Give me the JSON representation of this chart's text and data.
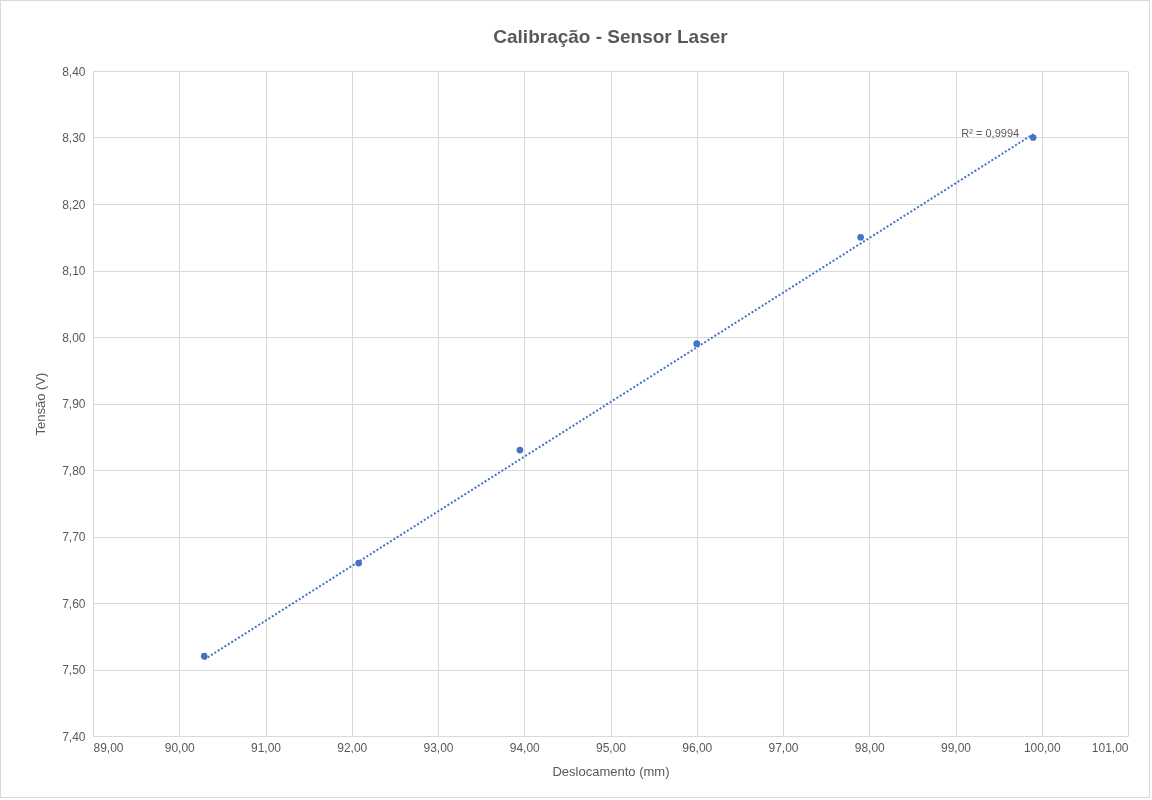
{
  "chart_data": {
    "type": "scatter",
    "title": "Calibração - Sensor Laser",
    "xlabel": "Deslocamento (mm)",
    "ylabel": "Tensão (V)",
    "series": [
      {
        "color": "#4472c4",
        "marker": "circle",
        "x": [
          90.29,
          92.08,
          93.95,
          96.0,
          97.9,
          99.9
        ],
        "values": [
          7.52,
          7.66,
          7.83,
          7.99,
          8.15,
          8.3
        ]
      },
      {
        "type": "line",
        "color": "#4472c4",
        "line_style": "dotted",
        "x": [
          90.29,
          99.9
        ],
        "values": [
          7.515,
          8.305
        ]
      }
    ],
    "annotations": [
      {
        "text": "R² = 0,9994",
        "x": 99.9,
        "y": 8.3
      }
    ],
    "xlim": [
      89,
      101
    ],
    "xticks": [
      {
        "value": 89,
        "label": "89,00"
      },
      {
        "value": 90,
        "label": "90,00"
      },
      {
        "value": 91,
        "label": "91,00"
      },
      {
        "value": 92,
        "label": "92,00"
      },
      {
        "value": 93,
        "label": "93,00"
      },
      {
        "value": 94,
        "label": "94,00"
      },
      {
        "value": 95,
        "label": "95,00"
      },
      {
        "value": 96,
        "label": "96,00"
      },
      {
        "value": 97,
        "label": "97,00"
      },
      {
        "value": 98,
        "label": "98,00"
      },
      {
        "value": 99,
        "label": "99,00"
      },
      {
        "value": 100,
        "label": "100,00"
      },
      {
        "value": 101,
        "label": "101,00"
      }
    ],
    "ylim": [
      7.4,
      8.4
    ],
    "yticks": [
      {
        "value": 7.4,
        "label": "7,40"
      },
      {
        "value": 7.5,
        "label": "7,50"
      },
      {
        "value": 7.6,
        "label": "7,60"
      },
      {
        "value": 7.7,
        "label": "7,70"
      },
      {
        "value": 7.8,
        "label": "7,80"
      },
      {
        "value": 7.9,
        "label": "7,90"
      },
      {
        "value": 8.0,
        "label": "8,00"
      },
      {
        "value": 8.1,
        "label": "8,10"
      },
      {
        "value": 8.2,
        "label": "8,20"
      },
      {
        "value": 8.3,
        "label": "8,30"
      },
      {
        "value": 8.4,
        "label": "8,40"
      }
    ],
    "grid": true
  }
}
